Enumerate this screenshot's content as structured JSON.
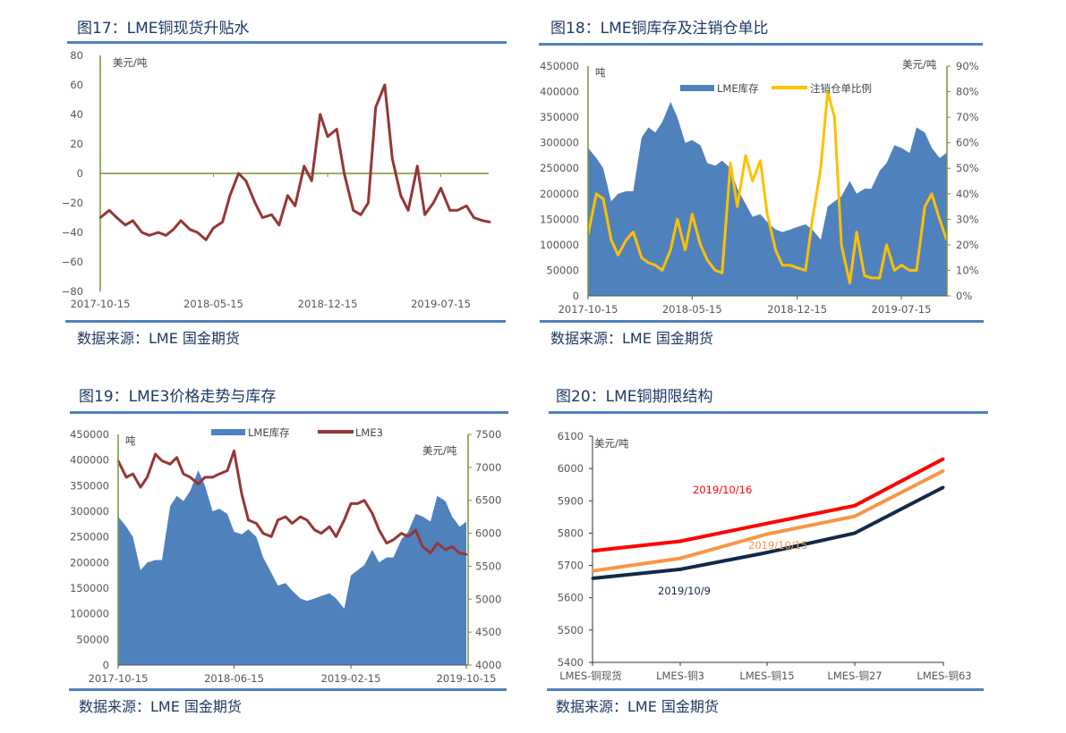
{
  "colors": {
    "title": "#1f3864",
    "rule": "#4f81bd",
    "inventory": "#4f81bd",
    "premium": "#953735",
    "ratio": "#ffc000",
    "lme3": "#953735",
    "axis": "#77933c",
    "s1016": "#ff0000",
    "s1015": "#f79646",
    "s109": "#13294b"
  },
  "chart_data": [
    {
      "id": "fig17",
      "type": "line",
      "title": "图17：LME铜现货升贴水",
      "source": "数据来源：LME  国金期货",
      "ylabel": "美元/吨",
      "ylim": [
        -80,
        80
      ],
      "yticks": [
        80,
        60,
        40,
        20,
        0,
        -20,
        -40,
        -60,
        -80
      ],
      "xticks": [
        "2017-10-15",
        "2018-05-15",
        "2018-12-15",
        "2019-07-15"
      ],
      "x": [
        "2017-10-15",
        "2017-11-01",
        "2017-11-15",
        "2017-12-01",
        "2017-12-15",
        "2018-01-01",
        "2018-01-15",
        "2018-02-01",
        "2018-02-15",
        "2018-03-01",
        "2018-03-15",
        "2018-04-01",
        "2018-04-15",
        "2018-05-01",
        "2018-05-15",
        "2018-06-01",
        "2018-06-15",
        "2018-07-01",
        "2018-07-15",
        "2018-08-01",
        "2018-08-15",
        "2018-09-01",
        "2018-09-15",
        "2018-10-01",
        "2018-10-15",
        "2018-11-01",
        "2018-11-15",
        "2018-12-01",
        "2018-12-15",
        "2019-01-01",
        "2019-01-15",
        "2019-02-01",
        "2019-02-15",
        "2019-03-01",
        "2019-03-15",
        "2019-04-01",
        "2019-04-15",
        "2019-05-01",
        "2019-05-15",
        "2019-06-01",
        "2019-06-15",
        "2019-07-01",
        "2019-07-15",
        "2019-08-01",
        "2019-08-15",
        "2019-09-01",
        "2019-09-15",
        "2019-10-01",
        "2019-10-15"
      ],
      "values": [
        -30,
        -25,
        -30,
        -35,
        -32,
        -40,
        -42,
        -40,
        -42,
        -38,
        -32,
        -38,
        -40,
        -45,
        -37,
        -33,
        -15,
        0,
        -5,
        -20,
        -30,
        -28,
        -35,
        -15,
        -22,
        5,
        -5,
        40,
        25,
        30,
        0,
        -25,
        -28,
        -20,
        45,
        60,
        10,
        -15,
        -25,
        5,
        -28,
        -20,
        -10,
        -25,
        -25,
        -22,
        -30,
        -32,
        -33
      ]
    },
    {
      "id": "fig18",
      "type": "area+line",
      "title": "图18：LME铜库存及注销仓单比",
      "source": "数据来源：LME  国金期货",
      "ylabel_left": "吨",
      "ylabel_right": "美元/吨",
      "ylim_left": [
        0,
        450000
      ],
      "ylim_right": [
        0,
        90
      ],
      "yticks_left": [
        450000,
        400000,
        350000,
        300000,
        250000,
        200000,
        150000,
        100000,
        50000,
        0
      ],
      "yticks_right": [
        "90%",
        "80%",
        "70%",
        "60%",
        "50%",
        "40%",
        "30%",
        "20%",
        "10%",
        "0%"
      ],
      "xticks": [
        "2017-10-15",
        "2018-05-15",
        "2018-12-15",
        "2019-07-15"
      ],
      "legend": [
        "LME库存",
        "注销仓单比例"
      ],
      "x": [
        "2017-10-15",
        "2017-11-01",
        "2017-11-15",
        "2017-12-01",
        "2017-12-15",
        "2018-01-01",
        "2018-01-15",
        "2018-02-01",
        "2018-02-15",
        "2018-03-01",
        "2018-03-15",
        "2018-04-01",
        "2018-04-15",
        "2018-05-01",
        "2018-05-15",
        "2018-06-01",
        "2018-06-15",
        "2018-07-01",
        "2018-07-15",
        "2018-08-01",
        "2018-08-15",
        "2018-09-01",
        "2018-09-15",
        "2018-10-01",
        "2018-10-15",
        "2018-11-01",
        "2018-11-15",
        "2018-12-01",
        "2018-12-15",
        "2019-01-01",
        "2019-01-15",
        "2019-02-01",
        "2019-02-15",
        "2019-03-01",
        "2019-03-15",
        "2019-04-01",
        "2019-04-15",
        "2019-05-01",
        "2019-05-15",
        "2019-06-01",
        "2019-06-15",
        "2019-07-01",
        "2019-07-15",
        "2019-08-01",
        "2019-08-15",
        "2019-09-01",
        "2019-09-15",
        "2019-10-01",
        "2019-10-15"
      ],
      "series": [
        {
          "name": "LME库存",
          "values": [
            290000,
            270000,
            250000,
            185000,
            200000,
            205000,
            205000,
            310000,
            330000,
            320000,
            340000,
            380000,
            350000,
            300000,
            305000,
            295000,
            260000,
            255000,
            265000,
            250000,
            210000,
            180000,
            155000,
            160000,
            145000,
            130000,
            125000,
            130000,
            135000,
            140000,
            130000,
            110000,
            175000,
            185000,
            195000,
            225000,
            200000,
            210000,
            210000,
            245000,
            260000,
            295000,
            290000,
            280000,
            330000,
            320000,
            290000,
            270000,
            280000
          ]
        },
        {
          "name": "注销仓单比例",
          "values": [
            24,
            40,
            38,
            22,
            16,
            22,
            25,
            15,
            13,
            12,
            10,
            18,
            30,
            18,
            32,
            20,
            14,
            10,
            9,
            52,
            35,
            55,
            45,
            53,
            32,
            18,
            12,
            12,
            11,
            10,
            30,
            50,
            80,
            70,
            20,
            5,
            25,
            8,
            7,
            7,
            20,
            10,
            12,
            10,
            10,
            35,
            40,
            30,
            22
          ]
        }
      ]
    },
    {
      "id": "fig19",
      "type": "area+line",
      "title": "图19：LME3价格走势与库存",
      "source": "数据来源：LME  国金期货",
      "ylabel_left": "吨",
      "ylabel_right": "美元/吨",
      "ylim_left": [
        0,
        450000
      ],
      "ylim_right": [
        4000,
        7500
      ],
      "yticks_left": [
        450000,
        400000,
        350000,
        300000,
        250000,
        200000,
        150000,
        100000,
        50000,
        0
      ],
      "yticks_right": [
        7500,
        7000,
        6500,
        6000,
        5500,
        5000,
        4500,
        4000
      ],
      "xticks": [
        "2017-10-15",
        "2018-06-15",
        "2019-02-15",
        "2019-10-15"
      ],
      "legend": [
        "LME库存",
        "LME3"
      ],
      "x": [
        "2017-10-15",
        "2017-11-01",
        "2017-11-15",
        "2017-12-01",
        "2017-12-15",
        "2018-01-01",
        "2018-01-15",
        "2018-02-01",
        "2018-02-15",
        "2018-03-01",
        "2018-03-15",
        "2018-04-01",
        "2018-04-15",
        "2018-05-01",
        "2018-05-15",
        "2018-06-01",
        "2018-06-15",
        "2018-07-01",
        "2018-07-15",
        "2018-08-01",
        "2018-08-15",
        "2018-09-01",
        "2018-09-15",
        "2018-10-01",
        "2018-10-15",
        "2018-11-01",
        "2018-11-15",
        "2018-12-01",
        "2018-12-15",
        "2019-01-01",
        "2019-01-15",
        "2019-02-01",
        "2019-02-15",
        "2019-03-01",
        "2019-03-15",
        "2019-04-01",
        "2019-04-15",
        "2019-05-01",
        "2019-05-15",
        "2019-06-01",
        "2019-06-15",
        "2019-07-01",
        "2019-07-15",
        "2019-08-01",
        "2019-08-15",
        "2019-09-01",
        "2019-09-15",
        "2019-10-01",
        "2019-10-15"
      ],
      "series": [
        {
          "name": "LME库存",
          "values": [
            290000,
            270000,
            250000,
            185000,
            200000,
            205000,
            205000,
            310000,
            330000,
            320000,
            340000,
            380000,
            350000,
            300000,
            305000,
            295000,
            260000,
            255000,
            265000,
            250000,
            210000,
            180000,
            155000,
            160000,
            145000,
            130000,
            125000,
            130000,
            135000,
            140000,
            130000,
            110000,
            175000,
            185000,
            195000,
            225000,
            200000,
            210000,
            210000,
            245000,
            260000,
            295000,
            290000,
            280000,
            330000,
            320000,
            290000,
            270000,
            280000
          ]
        },
        {
          "name": "LME3",
          "values": [
            7100,
            6850,
            6900,
            6700,
            6850,
            7200,
            7100,
            7050,
            7150,
            6900,
            6850,
            6750,
            6850,
            6850,
            6900,
            6950,
            7250,
            6600,
            6200,
            6150,
            6000,
            5950,
            6200,
            6250,
            6150,
            6250,
            6200,
            6050,
            6000,
            6100,
            5950,
            6200,
            6450,
            6450,
            6500,
            6300,
            6050,
            5850,
            5900,
            6000,
            5950,
            6050,
            5800,
            5700,
            5850,
            5750,
            5800,
            5700,
            5680
          ]
        }
      ]
    },
    {
      "id": "fig20",
      "type": "line",
      "title": "图20：LME铜期限结构",
      "source": "数据来源：LME  国金期货",
      "ylabel": "美元/吨",
      "ylim": [
        5400,
        6100
      ],
      "yticks": [
        6100,
        6000,
        5900,
        5800,
        5700,
        5600,
        5500,
        5400
      ],
      "categories": [
        "LMES-铜现货",
        "LMES-铜3",
        "LMES-铜15",
        "LMES-铜27",
        "LMES-铜63"
      ],
      "series": [
        {
          "name": "2019/10/16",
          "values": [
            5745,
            5775,
            5830,
            5885,
            6030
          ]
        },
        {
          "name": "2019/10/15",
          "values": [
            5683,
            5722,
            5797,
            5852,
            5993
          ]
        },
        {
          "name": "2019/10/9",
          "values": [
            5660,
            5688,
            5740,
            5800,
            5942
          ]
        }
      ]
    }
  ]
}
